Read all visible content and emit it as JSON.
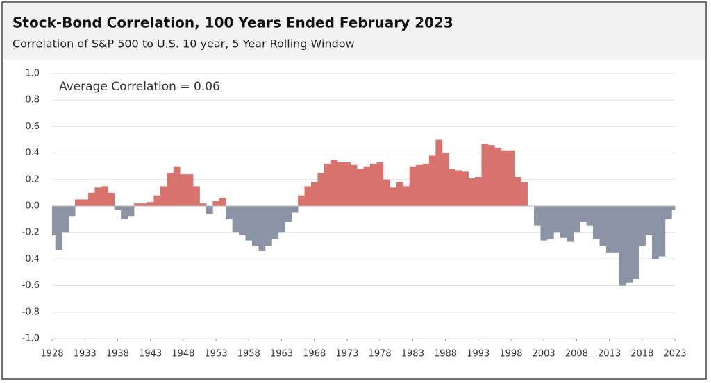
{
  "chart_data": {
    "type": "area",
    "title": "Stock-Bond Correlation, 100 Years Ended February 2023",
    "subtitle": "Correlation of S&P 500 to U.S. 10 year, 5 Year Rolling Window",
    "annotation": "Average Correlation = 0.06",
    "positive_color": "#d8736e",
    "negative_color": "#8b94a4",
    "grid": true,
    "xlim": [
      1928,
      2023
    ],
    "xticks": [
      1928,
      1933,
      1938,
      1943,
      1948,
      1953,
      1958,
      1963,
      1968,
      1973,
      1978,
      1983,
      1988,
      1993,
      1998,
      2003,
      2008,
      2013,
      2018,
      2023
    ],
    "ylim": [
      -1,
      1
    ],
    "yticks": [
      {
        "value": 1,
        "label": "1.0"
      },
      0.8,
      0.6,
      0.4,
      0.2,
      {
        "value": 0,
        "label": "0.0"
      },
      -0.2,
      -0.4,
      -0.6,
      -0.8,
      {
        "value": -1,
        "label": "-1.0"
      }
    ],
    "x": [
      1928,
      1929,
      1930,
      1931,
      1932,
      1933,
      1934,
      1935,
      1936,
      1937,
      1938,
      1939,
      1940,
      1941,
      1942,
      1943,
      1944,
      1945,
      1946,
      1947,
      1948,
      1949,
      1950,
      1951,
      1952,
      1953,
      1954,
      1955,
      1956,
      1957,
      1958,
      1959,
      1960,
      1961,
      1962,
      1963,
      1964,
      1965,
      1966,
      1967,
      1968,
      1969,
      1970,
      1971,
      1972,
      1973,
      1974,
      1975,
      1976,
      1977,
      1978,
      1979,
      1980,
      1981,
      1982,
      1983,
      1984,
      1985,
      1986,
      1987,
      1988,
      1989,
      1990,
      1991,
      1992,
      1993,
      1994,
      1995,
      1996,
      1997,
      1998,
      1999,
      2000,
      2001,
      2002,
      2003,
      2004,
      2005,
      2006,
      2007,
      2008,
      2009,
      2010,
      2011,
      2012,
      2013,
      2014,
      2015,
      2016,
      2017,
      2018,
      2019,
      2020,
      2021,
      2022,
      2023
    ],
    "values": [
      -0.22,
      -0.33,
      -0.2,
      -0.08,
      0.05,
      0.05,
      0.1,
      0.14,
      0.15,
      0.1,
      -0.03,
      -0.1,
      -0.08,
      0.02,
      0.02,
      0.03,
      0.08,
      0.15,
      0.25,
      0.3,
      0.24,
      0.24,
      0.15,
      0.02,
      -0.06,
      0.04,
      0.06,
      -0.1,
      -0.2,
      -0.22,
      -0.26,
      -0.3,
      -0.34,
      -0.3,
      -0.25,
      -0.2,
      -0.12,
      -0.05,
      0.08,
      0.15,
      0.18,
      0.25,
      0.32,
      0.35,
      0.33,
      0.33,
      0.31,
      0.28,
      0.3,
      0.32,
      0.33,
      0.2,
      0.14,
      0.18,
      0.15,
      0.3,
      0.31,
      0.32,
      0.38,
      0.5,
      0.4,
      0.28,
      0.27,
      0.26,
      0.21,
      0.22,
      0.47,
      0.46,
      0.44,
      0.42,
      0.42,
      0.22,
      0.18,
      0.0,
      -0.15,
      -0.26,
      -0.25,
      -0.2,
      -0.24,
      -0.27,
      -0.2,
      -0.12,
      -0.15,
      -0.25,
      -0.3,
      -0.35,
      -0.35,
      -0.6,
      -0.58,
      -0.55,
      -0.3,
      -0.22,
      -0.4,
      -0.38,
      -0.1,
      -0.03
    ]
  }
}
